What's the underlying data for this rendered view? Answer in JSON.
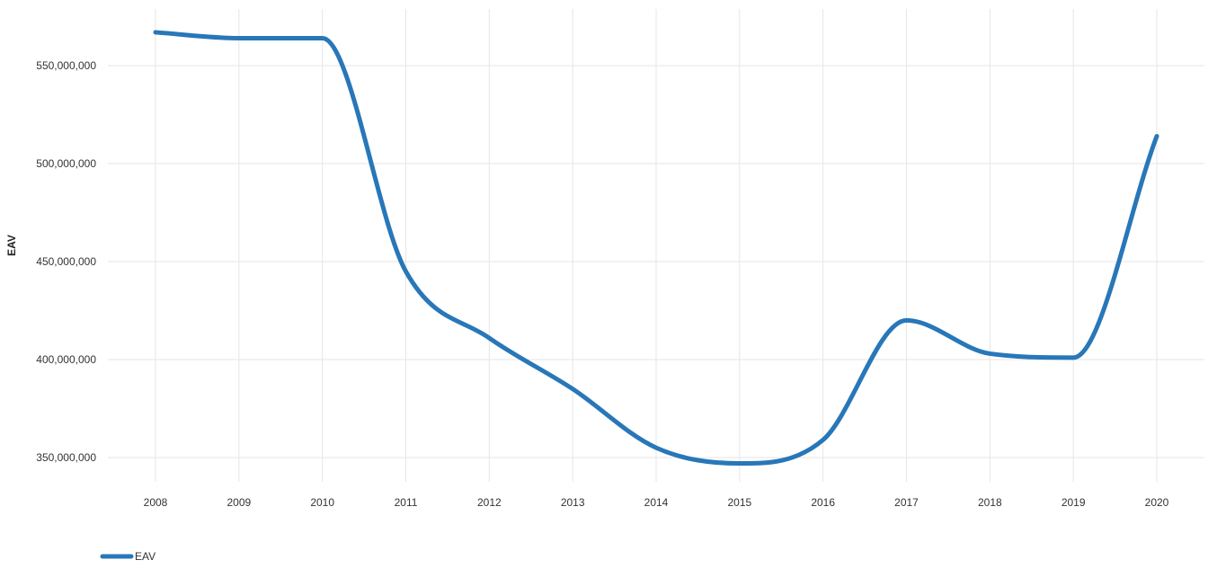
{
  "chart_data": {
    "type": "line",
    "ylabel": "EAV",
    "xlabel": "",
    "categories": [
      "2008",
      "2009",
      "2010",
      "2011",
      "2012",
      "2013",
      "2014",
      "2015",
      "2016",
      "2017",
      "2018",
      "2019",
      "2020"
    ],
    "series": [
      {
        "name": "EAV",
        "color": "#2877b8",
        "values": [
          567000000,
          564000000,
          564000000,
          445000000,
          411000000,
          385000000,
          355000000,
          347000000,
          359000000,
          420000000,
          403000000,
          401000000,
          514000000
        ]
      }
    ],
    "y_ticks": [
      350000000,
      400000000,
      450000000,
      500000000,
      550000000
    ],
    "y_tick_labels": [
      "350,000,000",
      "400,000,000",
      "450,000,000",
      "500,000,000",
      "550,000,000"
    ],
    "ylim": [
      335000000,
      580000000
    ],
    "grid": true,
    "legend_position": "bottom-left",
    "curve": "smooth"
  }
}
